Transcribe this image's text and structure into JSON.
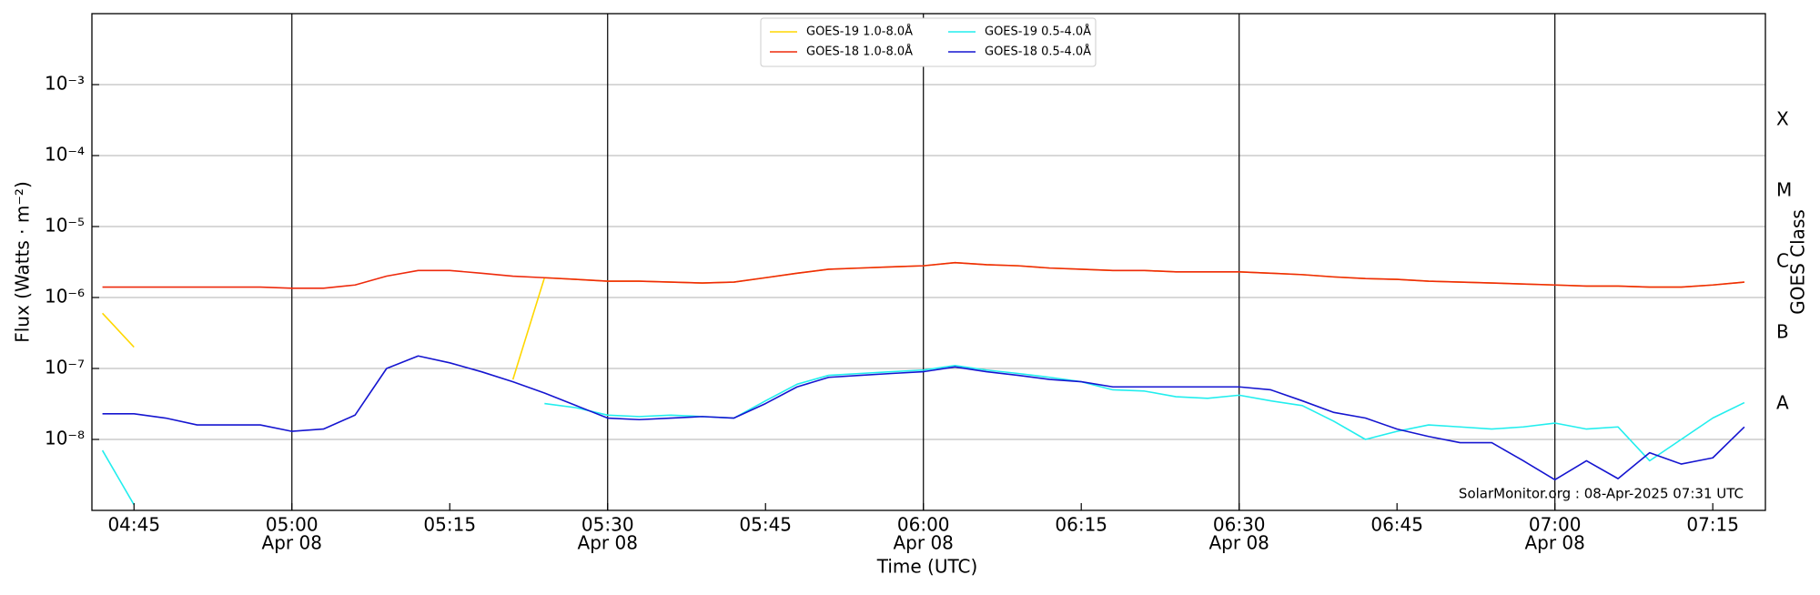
{
  "chart_data": {
    "type": "line",
    "log_y": true,
    "grid": true,
    "xlabel": "Time (UTC)",
    "ylabel": "Flux (Watts · m⁻²)",
    "y2label": "GOES Class",
    "annotation": "SolarMonitor.org : 08-Apr-2025 07:31 UTC",
    "legend": "top",
    "xlim": [
      "04:41",
      "07:20"
    ],
    "xticks": [
      "04:45",
      "05:00",
      "05:15",
      "05:30",
      "05:45",
      "06:00",
      "06:15",
      "06:30",
      "06:45",
      "07:00",
      "07:15"
    ],
    "xtick_dates": [
      null,
      "Apr 08",
      null,
      "Apr 08",
      null,
      "Apr 08",
      null,
      "Apr 08",
      null,
      "Apr 08",
      null
    ],
    "ylim": [
      1e-09,
      0.01
    ],
    "yticks": [
      {
        "value": 1e-08,
        "label": "10⁻⁸"
      },
      {
        "value": 1e-07,
        "label": "10⁻⁷"
      },
      {
        "value": 1e-06,
        "label": "10⁻⁶"
      },
      {
        "value": 1e-05,
        "label": "10⁻⁵"
      },
      {
        "value": 0.0001,
        "label": "10⁻⁴"
      },
      {
        "value": 0.001,
        "label": "10⁻³"
      }
    ],
    "y2lim": [
      1e-09,
      0.01
    ],
    "y2ticks": [
      {
        "value": 3.16e-08,
        "label": "A"
      },
      {
        "value": 3.16e-07,
        "label": "B"
      },
      {
        "value": 3.16e-06,
        "label": "C"
      },
      {
        "value": 3.16e-05,
        "label": "M"
      },
      {
        "value": 0.000316,
        "label": "X"
      }
    ],
    "x": [
      "04:42",
      "04:45",
      "04:48",
      "04:51",
      "04:54",
      "04:57",
      "05:00",
      "05:03",
      "05:06",
      "05:09",
      "05:12",
      "05:15",
      "05:18",
      "05:21",
      "05:24",
      "05:27",
      "05:30",
      "05:33",
      "05:36",
      "05:39",
      "05:42",
      "05:45",
      "05:48",
      "05:51",
      "05:54",
      "05:57",
      "06:00",
      "06:03",
      "06:06",
      "06:09",
      "06:12",
      "06:15",
      "06:18",
      "06:21",
      "06:24",
      "06:27",
      "06:30",
      "06:33",
      "06:36",
      "06:39",
      "06:42",
      "06:45",
      "06:48",
      "06:51",
      "06:54",
      "06:57",
      "07:00",
      "07:03",
      "07:06",
      "07:09",
      "07:12",
      "07:15",
      "07:18"
    ],
    "series": [
      {
        "name": "GOES-19 1.0-8.0Å",
        "color": "#ffd700",
        "values": [
          6e-07,
          2e-07,
          null,
          null,
          null,
          null,
          null,
          null,
          null,
          null,
          null,
          null,
          null,
          7e-08,
          1.9e-06,
          1.8e-06,
          1.7e-06,
          1.7e-06,
          1.65e-06,
          1.6e-06,
          1.65e-06,
          1.9e-06,
          2.2e-06,
          2.5e-06,
          2.6e-06,
          2.7e-06,
          2.8e-06,
          3.1e-06,
          2.9e-06,
          2.8e-06,
          2.6e-06,
          2.5e-06,
          2.4e-06,
          2.4e-06,
          2.3e-06,
          2.3e-06,
          2.3e-06,
          2.2e-06,
          2.1e-06,
          1.95e-06,
          1.85e-06,
          1.8e-06,
          1.7e-06,
          1.65e-06,
          1.6e-06,
          1.55e-06,
          1.5e-06,
          1.45e-06,
          1.45e-06,
          1.4e-06,
          1.4e-06,
          1.5e-06,
          1.65e-06
        ]
      },
      {
        "name": "GOES-18 1.0-8.0Å",
        "color": "#ee2a0c",
        "values": [
          1.4e-06,
          1.4e-06,
          1.4e-06,
          1.4e-06,
          1.4e-06,
          1.4e-06,
          1.35e-06,
          1.35e-06,
          1.5e-06,
          2e-06,
          2.4e-06,
          2.4e-06,
          2.2e-06,
          2e-06,
          1.9e-06,
          1.8e-06,
          1.7e-06,
          1.7e-06,
          1.65e-06,
          1.6e-06,
          1.65e-06,
          1.9e-06,
          2.2e-06,
          2.5e-06,
          2.6e-06,
          2.7e-06,
          2.8e-06,
          3.1e-06,
          2.9e-06,
          2.8e-06,
          2.6e-06,
          2.5e-06,
          2.4e-06,
          2.4e-06,
          2.3e-06,
          2.3e-06,
          2.3e-06,
          2.2e-06,
          2.1e-06,
          1.95e-06,
          1.85e-06,
          1.8e-06,
          1.7e-06,
          1.65e-06,
          1.6e-06,
          1.55e-06,
          1.5e-06,
          1.45e-06,
          1.45e-06,
          1.4e-06,
          1.4e-06,
          1.5e-06,
          1.65e-06
        ]
      },
      {
        "name": "GOES-19 0.5-4.0Å",
        "color": "#22eeee",
        "values": [
          7e-09,
          1.2e-09,
          null,
          null,
          null,
          null,
          null,
          null,
          null,
          null,
          null,
          null,
          null,
          null,
          3.2e-08,
          2.8e-08,
          2.2e-08,
          2.1e-08,
          2.2e-08,
          2.1e-08,
          2e-08,
          3.5e-08,
          6e-08,
          8e-08,
          8.5e-08,
          9e-08,
          9.5e-08,
          1.1e-07,
          9.5e-08,
          8.5e-08,
          7.5e-08,
          6.5e-08,
          5e-08,
          4.8e-08,
          4e-08,
          3.8e-08,
          4.2e-08,
          3.5e-08,
          3e-08,
          1.8e-08,
          1e-08,
          1.3e-08,
          1.6e-08,
          1.5e-08,
          1.4e-08,
          1.5e-08,
          1.7e-08,
          1.4e-08,
          1.5e-08,
          5e-09,
          1e-08,
          2e-08,
          3.3e-08
        ]
      },
      {
        "name": "GOES-18 0.5-4.0Å",
        "color": "#1515d0",
        "values": [
          2.3e-08,
          2.3e-08,
          2e-08,
          1.6e-08,
          1.6e-08,
          1.6e-08,
          1.3e-08,
          1.4e-08,
          2.2e-08,
          1e-07,
          1.5e-07,
          1.2e-07,
          9e-08,
          6.5e-08,
          4.5e-08,
          3e-08,
          2e-08,
          1.9e-08,
          2e-08,
          2.1e-08,
          2e-08,
          3.2e-08,
          5.5e-08,
          7.5e-08,
          8e-08,
          8.5e-08,
          9e-08,
          1.05e-07,
          9e-08,
          8e-08,
          7e-08,
          6.5e-08,
          5.5e-08,
          5.5e-08,
          5.5e-08,
          5.5e-08,
          5.5e-08,
          5e-08,
          3.5e-08,
          2.4e-08,
          2e-08,
          1.4e-08,
          1.1e-08,
          9e-09,
          9e-09,
          5e-09,
          2.7e-09,
          5e-09,
          2.8e-09,
          6.5e-09,
          4.5e-09,
          5.5e-09,
          1.5e-08
        ]
      }
    ]
  }
}
